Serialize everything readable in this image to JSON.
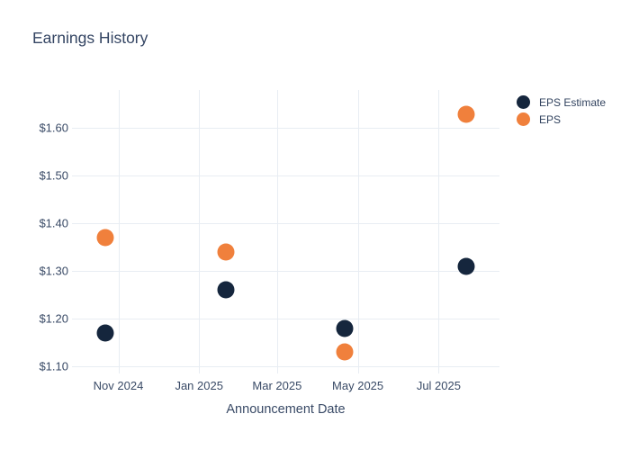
{
  "chart": {
    "title": "Earnings History",
    "xlabel": "Announcement Date"
  },
  "colors": {
    "eps_estimate": "#15263d",
    "eps": "#f0803c",
    "gridline": "#e8edf3",
    "title_text": "#344563",
    "axis_text": "#394a66",
    "background": "#ffffff"
  },
  "chart_data": {
    "type": "scatter",
    "title": "Earnings History",
    "xlabel": "Announcement Date",
    "ylabel": "",
    "grid": true,
    "legend_position": "right-outside-top",
    "x": [
      "2024-10-22",
      "2025-01-21",
      "2025-04-21",
      "2025-07-22"
    ],
    "series": [
      {
        "name": "EPS Estimate",
        "color": "#15263d",
        "values": [
          1.17,
          1.26,
          1.18,
          1.31
        ]
      },
      {
        "name": "EPS",
        "color": "#f0803c",
        "values": [
          1.37,
          1.34,
          1.13,
          1.63
        ]
      }
    ],
    "x_ticks": [
      {
        "date": "2024-11-01",
        "label": "Nov 2024"
      },
      {
        "date": "2025-01-01",
        "label": "Jan 2025"
      },
      {
        "date": "2025-03-01",
        "label": "Mar 2025"
      },
      {
        "date": "2025-05-01",
        "label": "May 2025"
      },
      {
        "date": "2025-07-01",
        "label": "Jul 2025"
      }
    ],
    "y_ticks": [
      {
        "value": 1.1,
        "label": "$1.10"
      },
      {
        "value": 1.2,
        "label": "$1.20"
      },
      {
        "value": 1.3,
        "label": "$1.30"
      },
      {
        "value": 1.4,
        "label": "$1.40"
      },
      {
        "value": 1.5,
        "label": "$1.50"
      },
      {
        "value": 1.6,
        "label": "$1.60"
      }
    ],
    "x_range": [
      "2024-09-27",
      "2025-08-16"
    ],
    "y_range": [
      1.085,
      1.68
    ]
  }
}
